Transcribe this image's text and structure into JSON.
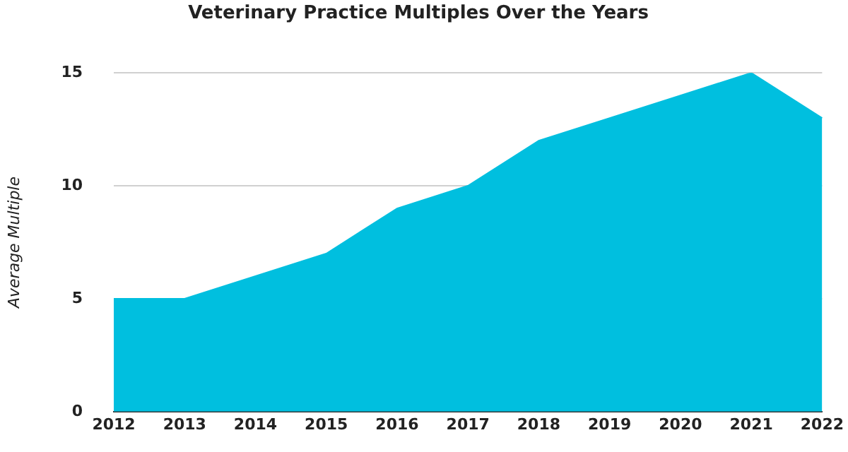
{
  "chart_data": {
    "type": "area",
    "title": "Veterinary Practice Multiples Over the Years",
    "ylabel": "Average Multiple",
    "categories": [
      "2012",
      "2013",
      "2014",
      "2015",
      "2016",
      "2017",
      "2018",
      "2019",
      "2020",
      "2021",
      "2022"
    ],
    "values": [
      5,
      5,
      6,
      7,
      9,
      10,
      12,
      13,
      14,
      15,
      13
    ],
    "color": "#00bfdf",
    "ylim": [
      0,
      15
    ],
    "yticks": [
      0,
      5,
      10,
      15
    ],
    "grid": "y"
  }
}
